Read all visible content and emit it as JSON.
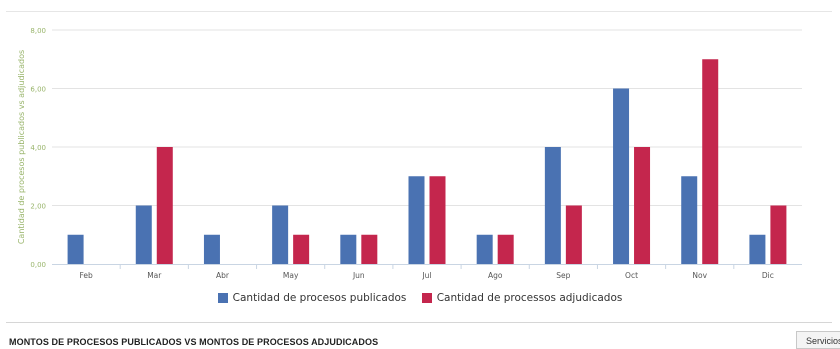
{
  "chart_data": {
    "type": "bar",
    "categories": [
      "Feb",
      "Mar",
      "Abr",
      "May",
      "Jun",
      "Jul",
      "Ago",
      "Sep",
      "Oct",
      "Nov",
      "Dic"
    ],
    "series": [
      {
        "name": "Cantidad de procesos publicados",
        "color": "#4a72b2",
        "values": [
          1,
          2,
          1,
          2,
          1,
          3,
          1,
          4,
          6,
          3,
          1
        ]
      },
      {
        "name": "Cantidad de processos adjudicados",
        "color": "#c4264d",
        "values": [
          0,
          4,
          0,
          1,
          1,
          3,
          1,
          2,
          4,
          7,
          2
        ]
      }
    ],
    "ylabel": "Cantidad de procesos publicados vs adjudicados",
    "xlabel": "",
    "ylim": [
      0,
      8
    ],
    "yticks": [
      "0,00",
      "2,00",
      "4,00",
      "6,00",
      "8,00"
    ],
    "grid": true,
    "legend_position": "bottom-center"
  },
  "section": {
    "title": "MONTOS DE PROCESOS PUBLICADOS VS MONTOS DE PROCESOS ADJUDICADOS",
    "button_label": "Servicios"
  }
}
